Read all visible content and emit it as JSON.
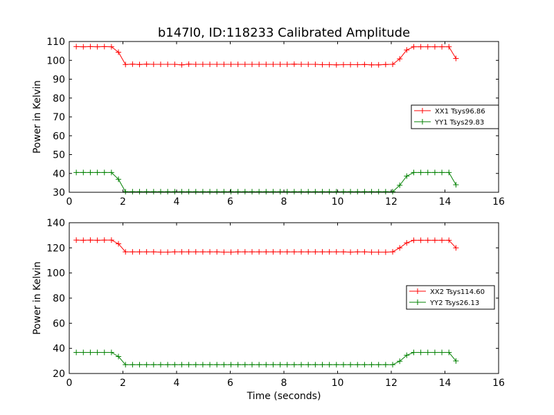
{
  "figure": {
    "title": "b147l0, ID:118233 Calibrated Amplitude",
    "xlabel": "Time (seconds)"
  },
  "chart_data": [
    {
      "type": "line",
      "ylabel": "Power in Kelvin",
      "xlim": [
        0,
        16
      ],
      "ylim": [
        30,
        110
      ],
      "xticks": [
        0,
        2,
        4,
        6,
        8,
        10,
        12,
        14,
        16
      ],
      "yticks": [
        30,
        40,
        50,
        60,
        70,
        80,
        90,
        100,
        110
      ],
      "legend_position": "center-right",
      "x": [
        0.262,
        0.524,
        0.786,
        1.048,
        1.31,
        1.572,
        1.834,
        2.096,
        2.358,
        2.62,
        2.882,
        3.144,
        3.406,
        3.668,
        3.93,
        4.192,
        4.454,
        4.716,
        4.978,
        5.24,
        5.502,
        5.764,
        6.026,
        6.288,
        6.55,
        6.812,
        7.074,
        7.336,
        7.598,
        7.86,
        8.122,
        8.384,
        8.646,
        8.908,
        9.17,
        9.432,
        9.694,
        9.956,
        10.218,
        10.48,
        10.742,
        11.004,
        11.266,
        11.528,
        11.79,
        12.052,
        12.314,
        12.576,
        12.838,
        13.1,
        13.362,
        13.624,
        13.886,
        14.148,
        14.41
      ],
      "series": [
        {
          "name": "XX1 Tsys96.86",
          "color": "#ff0000",
          "values": [
            107.3,
            107.2,
            107.3,
            107.2,
            107.3,
            107.2,
            104.3,
            97.8,
            98.0,
            97.8,
            98.0,
            97.9,
            97.9,
            97.9,
            97.9,
            97.6,
            98.0,
            97.9,
            97.9,
            97.9,
            97.9,
            97.9,
            97.9,
            97.9,
            97.9,
            97.9,
            97.9,
            97.9,
            97.9,
            97.9,
            97.9,
            98.0,
            97.9,
            97.9,
            97.9,
            97.7,
            97.7,
            97.6,
            97.7,
            97.7,
            97.7,
            97.8,
            97.6,
            97.6,
            97.8,
            97.9,
            100.8,
            105.5,
            107.2,
            107.2,
            107.2,
            107.2,
            107.2,
            107.2,
            101.0
          ]
        },
        {
          "name": "YY1 Tsys29.83",
          "color": "#008000",
          "values": [
            40.5,
            40.5,
            40.5,
            40.5,
            40.5,
            40.5,
            36.9,
            30.3,
            30.3,
            30.3,
            30.3,
            30.3,
            30.3,
            30.3,
            30.3,
            30.3,
            30.3,
            30.3,
            30.3,
            30.3,
            30.3,
            30.3,
            30.3,
            30.3,
            30.3,
            30.3,
            30.3,
            30.3,
            30.3,
            30.3,
            30.3,
            30.3,
            30.3,
            30.3,
            30.3,
            30.3,
            30.3,
            30.3,
            30.3,
            30.3,
            30.3,
            30.3,
            30.3,
            30.3,
            30.3,
            30.3,
            33.7,
            38.6,
            40.5,
            40.5,
            40.5,
            40.5,
            40.5,
            40.5,
            34.0
          ]
        }
      ]
    },
    {
      "type": "line",
      "ylabel": "Power in Kelvin",
      "xlim": [
        0,
        16
      ],
      "ylim": [
        20,
        140
      ],
      "xticks": [
        0,
        2,
        4,
        6,
        8,
        10,
        12,
        14,
        16
      ],
      "yticks": [
        20,
        40,
        60,
        80,
        100,
        120,
        140
      ],
      "legend_position": "center-right",
      "x": [
        0.262,
        0.524,
        0.786,
        1.048,
        1.31,
        1.572,
        1.834,
        2.096,
        2.358,
        2.62,
        2.882,
        3.144,
        3.406,
        3.668,
        3.93,
        4.192,
        4.454,
        4.716,
        4.978,
        5.24,
        5.502,
        5.764,
        6.026,
        6.288,
        6.55,
        6.812,
        7.074,
        7.336,
        7.598,
        7.86,
        8.122,
        8.384,
        8.646,
        8.908,
        9.17,
        9.432,
        9.694,
        9.956,
        10.218,
        10.48,
        10.742,
        11.004,
        11.266,
        11.528,
        11.79,
        12.052,
        12.314,
        12.576,
        12.838,
        13.1,
        13.362,
        13.624,
        13.886,
        14.148,
        14.41
      ],
      "series": [
        {
          "name": "XX2 Tsys114.60",
          "color": "#ff0000",
          "values": [
            126.2,
            126.0,
            126.2,
            126.0,
            126.2,
            126.2,
            123.2,
            116.8,
            116.8,
            116.8,
            116.8,
            116.8,
            116.6,
            116.6,
            116.8,
            116.8,
            116.8,
            116.8,
            116.8,
            116.8,
            116.8,
            116.6,
            116.6,
            116.8,
            116.8,
            116.8,
            116.8,
            116.8,
            116.8,
            116.8,
            116.8,
            116.8,
            116.8,
            116.8,
            116.8,
            116.8,
            116.8,
            116.8,
            116.8,
            116.6,
            116.8,
            116.8,
            116.6,
            116.6,
            116.6,
            116.8,
            120.0,
            124.0,
            126.0,
            126.0,
            126.0,
            126.0,
            126.0,
            126.0,
            120.0
          ]
        },
        {
          "name": "YY2 Tsys26.13",
          "color": "#008000",
          "values": [
            36.8,
            36.8,
            36.8,
            36.8,
            36.8,
            36.8,
            33.5,
            27.0,
            27.0,
            27.0,
            27.0,
            27.0,
            27.0,
            27.0,
            27.0,
            27.0,
            27.0,
            27.0,
            27.0,
            27.0,
            27.0,
            27.0,
            27.0,
            27.0,
            27.0,
            27.0,
            27.0,
            27.0,
            27.0,
            27.0,
            27.0,
            27.0,
            27.0,
            27.0,
            27.0,
            27.0,
            27.0,
            27.0,
            27.0,
            27.0,
            27.0,
            27.0,
            27.0,
            27.0,
            27.0,
            27.0,
            29.8,
            34.5,
            36.8,
            36.8,
            36.8,
            36.8,
            36.8,
            36.8,
            30.0
          ]
        }
      ]
    }
  ]
}
